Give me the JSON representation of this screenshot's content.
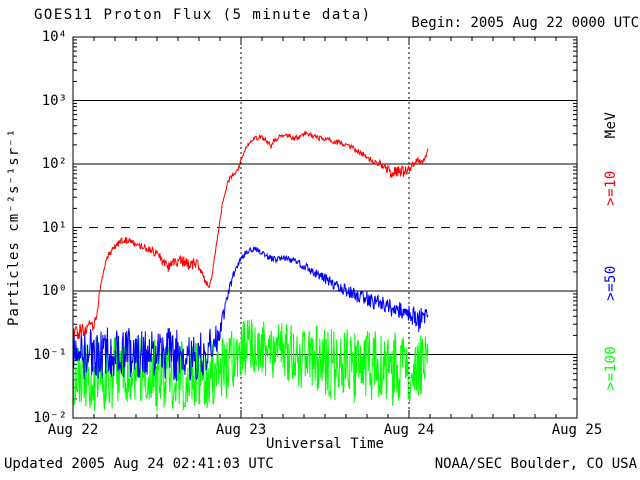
{
  "header": {
    "title": "GOES11 Proton Flux (5 minute data)",
    "begin": "Begin: 2005 Aug 22 0000 UTC"
  },
  "footer": {
    "updated": "Updated 2005 Aug 24 02:41:03 UTC",
    "credit": "NOAA/SEC Boulder, CO USA"
  },
  "chart_data": {
    "type": "line",
    "title": "GOES11 Proton Flux (5 minute data)",
    "subtitle": "Begin: 2005 Aug 22 0000 UTC",
    "xlabel": "Universal Time",
    "ylabel": "Particles cm⁻²s⁻¹sr⁻¹",
    "background": "#ffffff",
    "axis_color": "#000000",
    "x_axis": {
      "tick_labels": [
        "Aug 22",
        "Aug 23",
        "Aug 24",
        "Aug 25"
      ],
      "tick_hours": [
        0,
        24,
        48,
        72
      ],
      "minor_tick_step_hours": 3,
      "range_hours": [
        0,
        72
      ]
    },
    "y_axis": {
      "tick_labels": [
        "10⁴",
        "10³",
        "10²",
        "10¹",
        "10⁰",
        "10⁻¹",
        "10⁻²"
      ],
      "tick_exp": [
        4,
        3,
        2,
        1,
        0,
        -1,
        -2
      ],
      "range_exp": [
        -2,
        4
      ]
    },
    "gridlines": {
      "solid_exp": [
        3,
        2,
        0,
        -1
      ],
      "dashed_exp": [
        1
      ],
      "dotted_vertical_hours": [
        24,
        48
      ]
    },
    "legend": {
      "unit": "MeV",
      "entries": [
        {
          "label": ">=10",
          "color": "#ff0000"
        },
        {
          "label": ">=50",
          "color": "#0000ff"
        },
        {
          "label": ">=100",
          "color": "#00ff00"
        }
      ]
    },
    "sample_minutes": 5,
    "noise_seed": 20050822,
    "anchors_format": "[hours_since_begin, flux_particles_cm2_s_sr, noise_amplitude_log10_decades]",
    "data_end_hours": 50.69,
    "series": [
      {
        "name": "Protons >=10 MeV",
        "color": "#ff0000",
        "clamp_exp_min": -2,
        "anchors": [
          [
            0,
            0.2,
            0.12
          ],
          [
            1,
            0.23,
            0.12
          ],
          [
            2,
            0.26,
            0.11
          ],
          [
            3,
            0.3,
            0.1
          ],
          [
            3.4,
            0.45,
            0.06
          ],
          [
            4,
            1.3,
            0.05
          ],
          [
            4.8,
            3.2,
            0.05
          ],
          [
            5.8,
            4.8,
            0.05
          ],
          [
            7,
            6.2,
            0.05
          ],
          [
            8,
            6.3,
            0.05
          ],
          [
            9,
            5.6,
            0.05
          ],
          [
            10,
            5.0,
            0.05
          ],
          [
            11,
            4.5,
            0.06
          ],
          [
            12,
            3.8,
            0.07
          ],
          [
            13,
            2.8,
            0.09
          ],
          [
            13.6,
            2.3,
            0.09
          ],
          [
            14.5,
            2.9,
            0.08
          ],
          [
            15.5,
            3.0,
            0.08
          ],
          [
            16.5,
            2.6,
            0.09
          ],
          [
            17.5,
            2.7,
            0.09
          ],
          [
            18.3,
            2.2,
            0.08
          ],
          [
            18.9,
            1.5,
            0.06
          ],
          [
            19.4,
            1.15,
            0.04
          ],
          [
            19.8,
            1.6,
            0.03
          ],
          [
            20.5,
            5.5,
            0.03
          ],
          [
            21.3,
            22,
            0.03
          ],
          [
            22.2,
            55,
            0.04
          ],
          [
            23.0,
            70,
            0.04
          ],
          [
            23.6,
            85,
            0.04
          ],
          [
            24.3,
            140,
            0.03
          ],
          [
            25.0,
            200,
            0.03
          ],
          [
            26.0,
            250,
            0.04
          ],
          [
            26.8,
            270,
            0.04
          ],
          [
            27.6,
            245,
            0.05
          ],
          [
            28.3,
            190,
            0.05
          ],
          [
            28.8,
            240,
            0.04
          ],
          [
            29.5,
            265,
            0.04
          ],
          [
            30.3,
            290,
            0.03
          ],
          [
            31.0,
            270,
            0.04
          ],
          [
            31.8,
            250,
            0.04
          ],
          [
            32.6,
            285,
            0.04
          ],
          [
            33.4,
            305,
            0.03
          ],
          [
            34.2,
            275,
            0.04
          ],
          [
            35.0,
            258,
            0.04
          ],
          [
            36.0,
            248,
            0.04
          ],
          [
            37.0,
            232,
            0.04
          ],
          [
            38.0,
            216,
            0.04
          ],
          [
            39.0,
            198,
            0.04
          ],
          [
            40.0,
            178,
            0.04
          ],
          [
            41.0,
            152,
            0.04
          ],
          [
            42.0,
            128,
            0.05
          ],
          [
            43.0,
            112,
            0.05
          ],
          [
            44.0,
            98,
            0.06
          ],
          [
            44.8,
            82,
            0.08
          ],
          [
            45.6,
            72,
            0.1
          ],
          [
            46.4,
            78,
            0.09
          ],
          [
            47.2,
            74,
            0.09
          ],
          [
            48.0,
            84,
            0.07
          ],
          [
            48.7,
            98,
            0.05
          ],
          [
            49.2,
            118,
            0.04
          ],
          [
            49.7,
            108,
            0.04
          ],
          [
            50.1,
            115,
            0.03
          ],
          [
            50.4,
            135,
            0.03
          ],
          [
            50.69,
            175,
            0.02
          ]
        ]
      },
      {
        "name": "Protons >=50 MeV",
        "color": "#0000ff",
        "clamp_exp_min": -2,
        "anchors": [
          [
            0,
            0.1,
            0.4
          ],
          [
            3,
            0.1,
            0.4
          ],
          [
            6,
            0.11,
            0.4
          ],
          [
            9,
            0.1,
            0.42
          ],
          [
            12,
            0.1,
            0.42
          ],
          [
            15,
            0.1,
            0.42
          ],
          [
            18,
            0.1,
            0.4
          ],
          [
            19.5,
            0.12,
            0.34
          ],
          [
            20.5,
            0.17,
            0.24
          ],
          [
            21.4,
            0.38,
            0.14
          ],
          [
            22.2,
            0.95,
            0.08
          ],
          [
            23.0,
            1.9,
            0.06
          ],
          [
            23.8,
            2.9,
            0.05
          ],
          [
            24.6,
            3.9,
            0.04
          ],
          [
            25.4,
            4.4,
            0.04
          ],
          [
            26.0,
            4.6,
            0.04
          ],
          [
            26.7,
            4.2,
            0.04
          ],
          [
            27.4,
            3.8,
            0.05
          ],
          [
            28.2,
            3.3,
            0.05
          ],
          [
            29.0,
            3.1,
            0.05
          ],
          [
            29.8,
            3.3,
            0.05
          ],
          [
            30.6,
            3.2,
            0.05
          ],
          [
            31.4,
            3.1,
            0.05
          ],
          [
            32.2,
            2.8,
            0.06
          ],
          [
            33.0,
            2.5,
            0.06
          ],
          [
            34.0,
            2.1,
            0.07
          ],
          [
            35.0,
            1.8,
            0.07
          ],
          [
            36.0,
            1.55,
            0.08
          ],
          [
            37.0,
            1.35,
            0.09
          ],
          [
            38.0,
            1.18,
            0.09
          ],
          [
            39.0,
            1.02,
            0.1
          ],
          [
            40.0,
            0.92,
            0.11
          ],
          [
            41.0,
            0.82,
            0.12
          ],
          [
            42.0,
            0.76,
            0.12
          ],
          [
            43.0,
            0.68,
            0.13
          ],
          [
            44.0,
            0.62,
            0.13
          ],
          [
            45.0,
            0.56,
            0.14
          ],
          [
            46.0,
            0.52,
            0.14
          ],
          [
            47.0,
            0.49,
            0.15
          ],
          [
            48.0,
            0.44,
            0.16
          ],
          [
            48.8,
            0.38,
            0.17
          ],
          [
            49.4,
            0.33,
            0.18
          ],
          [
            49.9,
            0.42,
            0.14
          ],
          [
            50.4,
            0.4,
            0.13
          ],
          [
            50.69,
            0.42,
            0.12
          ]
        ]
      },
      {
        "name": "Protons >=100 MeV",
        "color": "#00ff00",
        "clamp_exp_min": -2,
        "anchors": [
          [
            0,
            0.05,
            0.58
          ],
          [
            3,
            0.048,
            0.6
          ],
          [
            6,
            0.05,
            0.6
          ],
          [
            9,
            0.052,
            0.6
          ],
          [
            12,
            0.048,
            0.6
          ],
          [
            15,
            0.05,
            0.6
          ],
          [
            18,
            0.05,
            0.58
          ],
          [
            20,
            0.052,
            0.56
          ],
          [
            22,
            0.062,
            0.52
          ],
          [
            23.5,
            0.095,
            0.48
          ],
          [
            24.5,
            0.125,
            0.45
          ],
          [
            25.5,
            0.14,
            0.44
          ],
          [
            26.5,
            0.13,
            0.46
          ],
          [
            27.5,
            0.12,
            0.48
          ],
          [
            28.5,
            0.108,
            0.5
          ],
          [
            30,
            0.1,
            0.52
          ],
          [
            31.5,
            0.096,
            0.53
          ],
          [
            33,
            0.09,
            0.54
          ],
          [
            34.5,
            0.082,
            0.55
          ],
          [
            36,
            0.074,
            0.56
          ],
          [
            37.5,
            0.07,
            0.58
          ],
          [
            39,
            0.068,
            0.58
          ],
          [
            40.5,
            0.062,
            0.59
          ],
          [
            42,
            0.064,
            0.58
          ],
          [
            43.5,
            0.068,
            0.57
          ],
          [
            45,
            0.06,
            0.59
          ],
          [
            46.5,
            0.06,
            0.59
          ],
          [
            48,
            0.064,
            0.57
          ],
          [
            49,
            0.07,
            0.55
          ],
          [
            50,
            0.08,
            0.52
          ],
          [
            50.69,
            0.1,
            0.48
          ]
        ]
      }
    ]
  }
}
